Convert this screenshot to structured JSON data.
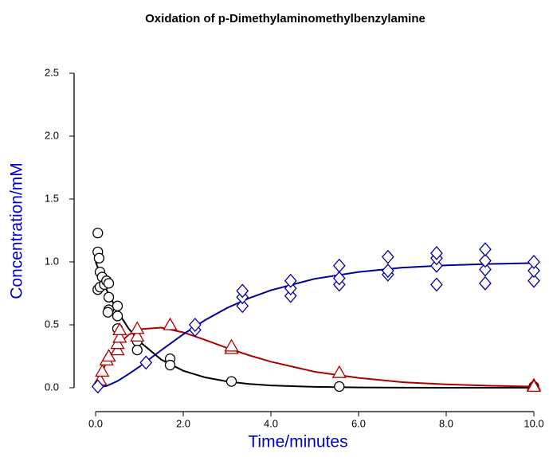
{
  "chart_data": {
    "type": "scatter",
    "title": "Oxidation of p-Dimethylaminomethylbenzylamine",
    "x_label": "Time/minutes",
    "y_label": "Concentration/mM",
    "axis_label_color": "#0000cc",
    "xlim": [
      0,
      10
    ],
    "ylim": [
      0,
      2.5
    ],
    "xticks": [
      {
        "value": 0,
        "label": "0.0"
      },
      {
        "value": 2,
        "label": "2.0"
      },
      {
        "value": 4,
        "label": "4.0"
      },
      {
        "value": 6,
        "label": "6.0"
      },
      {
        "value": 8,
        "label": "8.0"
      },
      {
        "value": 10,
        "label": "10.0"
      }
    ],
    "yticks": [
      {
        "value": 0,
        "label": "0.0"
      },
      {
        "value": 0.5,
        "label": "0.5"
      },
      {
        "value": 1,
        "label": "1.0"
      },
      {
        "value": 1.5,
        "label": "1.5"
      },
      {
        "value": 2,
        "label": "2.0"
      },
      {
        "value": 2.5,
        "label": "2.5"
      }
    ],
    "series": [
      {
        "marker": "circle",
        "color": "#000000",
        "x": [
          0.05,
          0.05,
          0.08,
          0.1,
          0.05,
          0.1,
          0.15,
          0.2,
          0.25,
          0.3,
          0.3,
          0.3,
          0.28,
          0.5,
          0.5,
          0.5,
          0.95,
          0.95,
          1.7,
          1.7,
          3.1,
          5.56,
          10
        ],
        "values": [
          1.23,
          1.08,
          1.03,
          0.92,
          0.78,
          0.8,
          0.88,
          0.82,
          0.85,
          0.83,
          0.72,
          0.62,
          0.6,
          0.65,
          0.57,
          0.47,
          0.37,
          0.3,
          0.23,
          0.18,
          0.05,
          0.01,
          0.01
        ]
      },
      {
        "marker": "triangle",
        "color": "#aa0000",
        "x": [
          0.1,
          0.15,
          0.25,
          0.3,
          0.5,
          0.5,
          0.55,
          0.55,
          0.95,
          0.95,
          1.7,
          3.1,
          3.1,
          5.56,
          10,
          10
        ],
        "values": [
          0.06,
          0.13,
          0.22,
          0.25,
          0.3,
          0.35,
          0.4,
          0.46,
          0.41,
          0.47,
          0.5,
          0.31,
          0.33,
          0.12,
          0.02,
          0.01
        ]
      },
      {
        "marker": "diamond",
        "color": "#000099",
        "x": [
          0.05,
          1.15,
          2.27,
          2.27,
          3.35,
          3.35,
          3.35,
          4.45,
          4.45,
          4.45,
          5.56,
          5.56,
          5.56,
          6.67,
          6.67,
          6.67,
          7.78,
          7.78,
          7.78,
          7.78,
          8.89,
          8.89,
          8.89,
          8.89,
          10,
          10,
          10
        ],
        "values": [
          0.01,
          0.2,
          0.46,
          0.5,
          0.65,
          0.72,
          0.77,
          0.73,
          0.79,
          0.85,
          0.82,
          0.87,
          0.97,
          0.9,
          0.93,
          1.04,
          0.82,
          0.97,
          1.03,
          1.07,
          0.83,
          0.94,
          1.01,
          1.1,
          0.85,
          0.93,
          1.0
        ]
      }
    ],
    "curve_x": [
      0,
      0.25,
      0.5,
      0.75,
      1,
      1.5,
      2,
      2.5,
      3,
      3.5,
      4,
      5,
      6,
      7,
      8,
      9,
      10
    ],
    "curves": [
      {
        "color": "#000000",
        "values": [
          1,
          0.779,
          0.607,
          0.472,
          0.368,
          0.223,
          0.135,
          0.082,
          0.05,
          0.03,
          0.018,
          0.007,
          0.002,
          0.001,
          0,
          0,
          0
        ]
      },
      {
        "color": "#aa0000",
        "values": [
          0,
          0.207,
          0.34,
          0.42,
          0.465,
          0.478,
          0.44,
          0.38,
          0.316,
          0.258,
          0.207,
          0.127,
          0.078,
          0.044,
          0.027,
          0.016,
          0.009
        ]
      },
      {
        "color": "#000099",
        "values": [
          0,
          0.014,
          0.053,
          0.108,
          0.167,
          0.299,
          0.425,
          0.538,
          0.634,
          0.712,
          0.775,
          0.866,
          0.92,
          0.955,
          0.973,
          0.984,
          0.991
        ]
      }
    ]
  }
}
